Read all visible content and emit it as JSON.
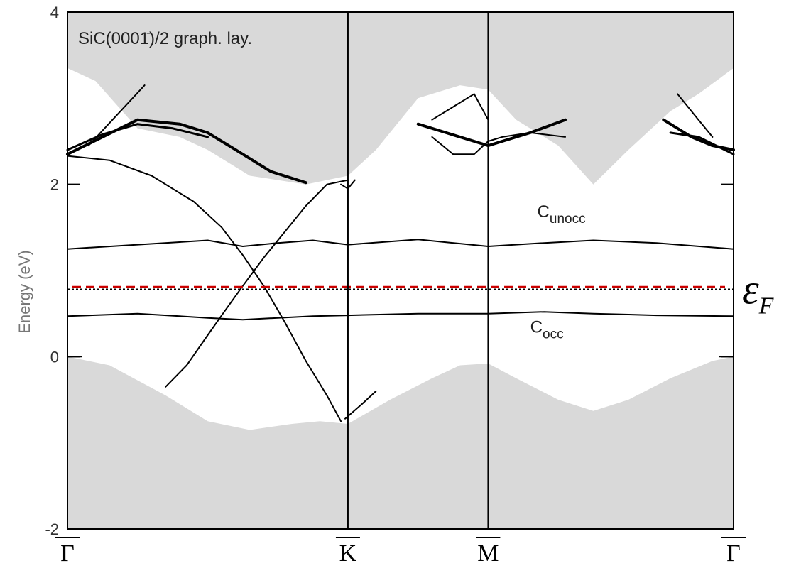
{
  "chart_data": {
    "type": "line",
    "title": "SiC(0001̄)/2 graph. lay.",
    "xlabel": "",
    "ylabel": "Energy (eV)",
    "ylim": [
      -2,
      4
    ],
    "yticks": [
      -2,
      0,
      2,
      4
    ],
    "x_range": [
      0,
      4.75
    ],
    "kpoints": [
      {
        "label": "Γ",
        "x": 0
      },
      {
        "label": "K",
        "x": 2.0
      },
      {
        "label": "M",
        "x": 3.0
      },
      {
        "label": "Γ",
        "x": 4.75
      }
    ],
    "grid": false,
    "fermi_level": {
      "value": 0.8,
      "label_main": "ε",
      "label_sub": "F",
      "color": "#cc0000"
    },
    "band_labels": [
      {
        "main": "C",
        "sub": "unocc",
        "x": 3.35,
        "y": 1.62
      },
      {
        "main": "C",
        "sub": "occ",
        "x": 3.3,
        "y": 0.28
      }
    ],
    "projected_bulk": {
      "color": "#d9d9d9",
      "conduction_edge": [
        [
          0,
          3.35
        ],
        [
          0.2,
          3.2
        ],
        [
          0.5,
          2.65
        ],
        [
          0.8,
          2.55
        ],
        [
          1.0,
          2.4
        ],
        [
          1.3,
          2.1
        ],
        [
          1.7,
          2.0
        ],
        [
          2.0,
          2.1
        ],
        [
          2.2,
          2.4
        ],
        [
          2.5,
          3.0
        ],
        [
          2.8,
          3.15
        ],
        [
          3.0,
          3.1
        ],
        [
          3.2,
          2.75
        ],
        [
          3.5,
          2.45
        ],
        [
          3.75,
          2.0
        ],
        [
          4.0,
          2.4
        ],
        [
          4.3,
          2.85
        ],
        [
          4.5,
          3.05
        ],
        [
          4.75,
          3.35
        ]
      ],
      "valence_edge": [
        [
          0,
          0.0
        ],
        [
          0.3,
          -0.1
        ],
        [
          0.7,
          -0.45
        ],
        [
          1.0,
          -0.75
        ],
        [
          1.3,
          -0.85
        ],
        [
          1.6,
          -0.78
        ],
        [
          1.8,
          -0.75
        ],
        [
          2.0,
          -0.78
        ],
        [
          2.3,
          -0.5
        ],
        [
          2.6,
          -0.25
        ],
        [
          2.8,
          -0.1
        ],
        [
          3.0,
          -0.08
        ],
        [
          3.2,
          -0.25
        ],
        [
          3.5,
          -0.5
        ],
        [
          3.75,
          -0.63
        ],
        [
          4.0,
          -0.5
        ],
        [
          4.3,
          -0.25
        ],
        [
          4.6,
          -0.05
        ],
        [
          4.75,
          0.0
        ]
      ]
    },
    "series": [
      {
        "values": [
          [
            0,
            1.25
          ],
          [
            0.5,
            1.3
          ],
          [
            1.0,
            1.35
          ],
          [
            1.25,
            1.28
          ],
          [
            1.5,
            1.32
          ],
          [
            1.75,
            1.35
          ],
          [
            2.0,
            1.3
          ],
          [
            2.5,
            1.36
          ],
          [
            3.0,
            1.28
          ],
          [
            3.4,
            1.32
          ],
          [
            3.75,
            1.35
          ],
          [
            4.2,
            1.32
          ],
          [
            4.75,
            1.25
          ]
        ],
        "width": 2
      },
      {
        "values": [
          [
            0,
            0.47
          ],
          [
            0.5,
            0.5
          ],
          [
            1.0,
            0.45
          ],
          [
            1.25,
            0.43
          ],
          [
            1.5,
            0.45
          ],
          [
            1.75,
            0.47
          ],
          [
            2.0,
            0.48
          ],
          [
            2.5,
            0.5
          ],
          [
            3.0,
            0.5
          ],
          [
            3.4,
            0.52
          ],
          [
            3.75,
            0.5
          ],
          [
            4.2,
            0.48
          ],
          [
            4.75,
            0.47
          ]
        ],
        "width": 2
      },
      {
        "values": [
          [
            0,
            2.33
          ],
          [
            0.3,
            2.28
          ],
          [
            0.6,
            2.1
          ],
          [
            0.9,
            1.8
          ],
          [
            1.1,
            1.5
          ],
          [
            1.25,
            1.18
          ],
          [
            1.4,
            0.82
          ],
          [
            1.55,
            0.4
          ],
          [
            1.7,
            -0.05
          ],
          [
            1.85,
            -0.45
          ],
          [
            1.95,
            -0.75
          ]
        ],
        "width": 2
      },
      {
        "values": [
          [
            0.7,
            -0.35
          ],
          [
            0.85,
            -0.1
          ],
          [
            1.0,
            0.25
          ],
          [
            1.1,
            0.48
          ],
          [
            1.25,
            0.82
          ],
          [
            1.4,
            1.15
          ],
          [
            1.55,
            1.45
          ],
          [
            1.7,
            1.75
          ],
          [
            1.85,
            2.0
          ],
          [
            2.0,
            2.05
          ]
        ],
        "width": 2
      },
      {
        "values": [
          [
            0,
            2.35
          ],
          [
            0.25,
            2.55
          ],
          [
            0.5,
            2.75
          ],
          [
            0.8,
            2.7
          ],
          [
            1.0,
            2.6
          ],
          [
            1.2,
            2.4
          ],
          [
            1.45,
            2.15
          ],
          [
            1.7,
            2.02
          ]
        ],
        "width": 4
      },
      {
        "values": [
          [
            0,
            2.4
          ],
          [
            0.25,
            2.58
          ],
          [
            0.5,
            2.7
          ],
          [
            0.75,
            2.65
          ],
          [
            1.0,
            2.55
          ]
        ],
        "width": 3
      },
      {
        "values": [
          [
            0.15,
            2.45
          ],
          [
            0.35,
            2.8
          ],
          [
            0.55,
            3.15
          ]
        ],
        "width": 2
      },
      {
        "values": [
          [
            2.2,
            -0.4
          ],
          [
            2.1,
            -0.55
          ],
          [
            1.98,
            -0.72
          ]
        ],
        "width": 2
      },
      {
        "values": [
          [
            1.95,
            2.0
          ],
          [
            2.0,
            1.95
          ],
          [
            2.05,
            2.05
          ]
        ],
        "width": 2
      },
      {
        "values": [
          [
            2.5,
            2.7
          ],
          [
            2.7,
            2.6
          ],
          [
            2.9,
            2.5
          ],
          [
            3.0,
            2.45
          ],
          [
            3.1,
            2.5
          ],
          [
            3.3,
            2.6
          ],
          [
            3.55,
            2.75
          ]
        ],
        "width": 4
      },
      {
        "values": [
          [
            2.6,
            2.75
          ],
          [
            2.75,
            2.9
          ],
          [
            2.9,
            3.05
          ],
          [
            3.0,
            2.75
          ]
        ],
        "width": 2
      },
      {
        "values": [
          [
            2.6,
            2.55
          ],
          [
            2.75,
            2.35
          ],
          [
            2.9,
            2.35
          ],
          [
            3.0,
            2.5
          ]
        ],
        "width": 2
      },
      {
        "values": [
          [
            3.0,
            2.5
          ],
          [
            3.1,
            2.55
          ],
          [
            3.3,
            2.6
          ],
          [
            3.55,
            2.55
          ]
        ],
        "width": 2
      },
      {
        "values": [
          [
            4.25,
            2.75
          ],
          [
            4.45,
            2.55
          ],
          [
            4.6,
            2.45
          ],
          [
            4.75,
            2.4
          ]
        ],
        "width": 4
      },
      {
        "values": [
          [
            4.3,
            2.6
          ],
          [
            4.5,
            2.55
          ],
          [
            4.75,
            2.35
          ]
        ],
        "width": 3
      },
      {
        "values": [
          [
            4.35,
            3.05
          ],
          [
            4.5,
            2.75
          ],
          [
            4.6,
            2.55
          ]
        ],
        "width": 2
      },
      {
        "values": [
          [
            0,
            0.0
          ],
          [
            0.1,
            0.0
          ]
        ],
        "width": 2
      },
      {
        "values": [
          [
            4.65,
            0.0
          ],
          [
            4.75,
            0.0
          ]
        ],
        "width": 2
      }
    ]
  }
}
